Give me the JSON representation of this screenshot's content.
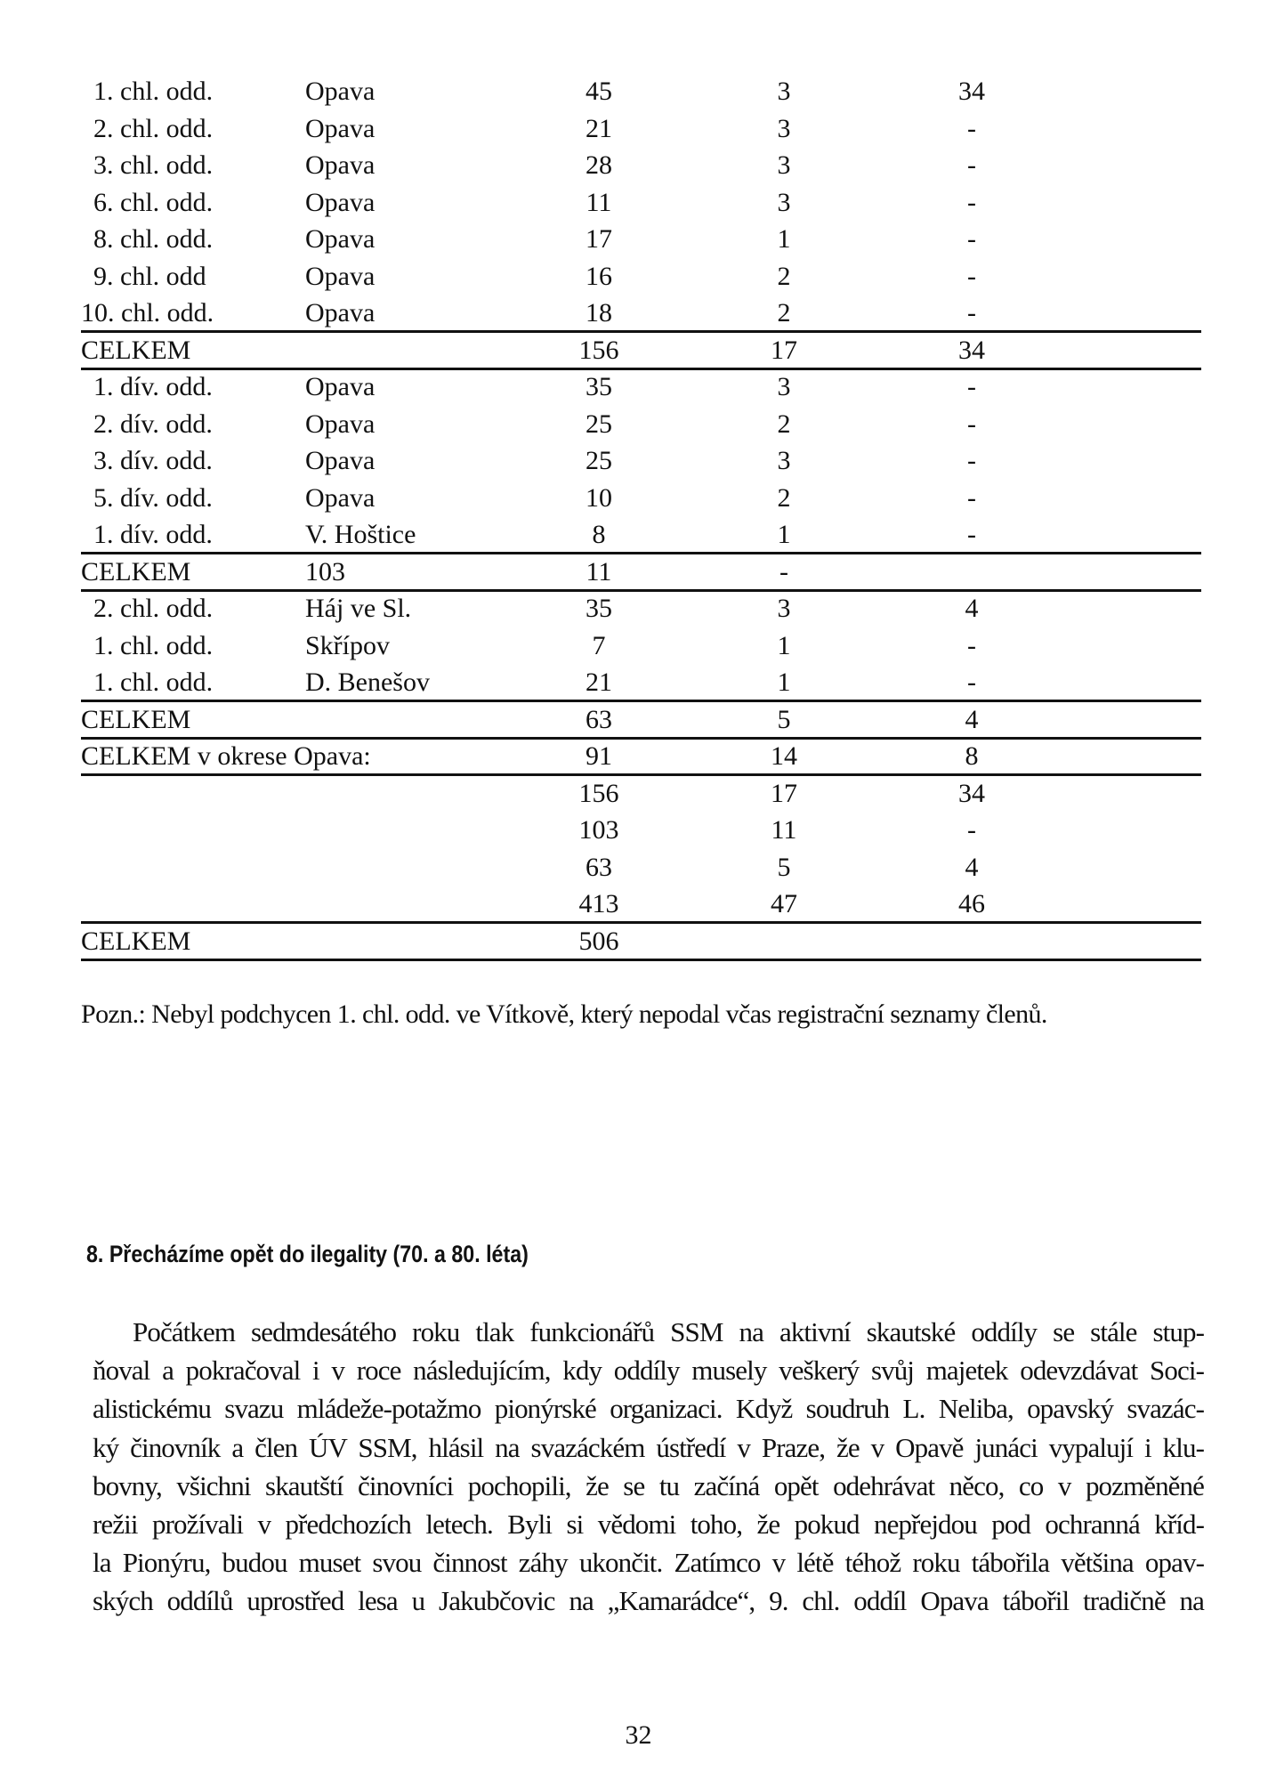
{
  "table": {
    "rows": [
      {
        "kind": "item",
        "cells": [
          "1. chl. odd.",
          "Opava",
          "45",
          "3",
          "34"
        ]
      },
      {
        "kind": "item",
        "cells": [
          "2. chl. odd.",
          "Opava",
          "21",
          "3",
          "-"
        ]
      },
      {
        "kind": "item",
        "cells": [
          "3. chl. odd.",
          "Opava",
          "28",
          "3",
          "-"
        ]
      },
      {
        "kind": "item",
        "cells": [
          "6. chl. odd.",
          "Opava",
          "11",
          "3",
          "-"
        ]
      },
      {
        "kind": "item",
        "cells": [
          "8. chl. odd.",
          "Opava",
          "17",
          "1",
          "-"
        ]
      },
      {
        "kind": "item",
        "cells": [
          "9. chl. odd",
          "Opava",
          "16",
          "2",
          "-"
        ]
      },
      {
        "kind": "item",
        "cells": [
          "10. chl. odd.",
          "Opava",
          "18",
          "2",
          "-"
        ]
      },
      {
        "kind": "total",
        "cells": [
          "CELKEM",
          "",
          "156",
          "17",
          "34"
        ]
      },
      {
        "kind": "item",
        "cells": [
          "1. dív. odd.",
          "Opava",
          "35",
          "3",
          "-"
        ]
      },
      {
        "kind": "item",
        "cells": [
          "2. dív. odd.",
          "Opava",
          "25",
          "2",
          "-"
        ]
      },
      {
        "kind": "item",
        "cells": [
          "3. dív. odd.",
          "Opava",
          "25",
          "3",
          "-"
        ]
      },
      {
        "kind": "item",
        "cells": [
          "5. dív. odd.",
          "Opava",
          "10",
          "2",
          "-"
        ]
      },
      {
        "kind": "item",
        "cells": [
          "1. dív. odd.",
          "V. Hoštice",
          "8",
          "1",
          "-"
        ]
      },
      {
        "kind": "total",
        "cells": [
          "CELKEM",
          "103",
          "11",
          "-",
          ""
        ]
      },
      {
        "kind": "item",
        "cells": [
          "2. chl. odd.",
          "Háj ve Sl.",
          "35",
          "3",
          "4"
        ]
      },
      {
        "kind": "item",
        "cells": [
          "1. chl. odd.",
          "Skřípov",
          "7",
          "1",
          "-"
        ]
      },
      {
        "kind": "item",
        "cells": [
          "1. chl. odd.",
          "D. Benešov",
          "21",
          "1",
          "-"
        ]
      },
      {
        "kind": "total",
        "cells": [
          "CELKEM",
          "",
          "63",
          "5",
          "4"
        ]
      },
      {
        "kind": "total",
        "cells": [
          "CELKEM v okrese Opava:",
          "",
          "91",
          "14",
          "8"
        ]
      },
      {
        "kind": "sum",
        "cells": [
          "",
          "",
          "156",
          "17",
          "34"
        ]
      },
      {
        "kind": "sum",
        "cells": [
          "",
          "",
          "103",
          "11",
          "-"
        ]
      },
      {
        "kind": "sum",
        "cells": [
          "",
          "",
          "63",
          "5",
          "4"
        ]
      },
      {
        "kind": "sum",
        "cells": [
          "",
          "",
          "413",
          "47",
          "46"
        ]
      },
      {
        "kind": "total",
        "cells": [
          "CELKEM",
          "",
          "506",
          "",
          ""
        ]
      }
    ]
  },
  "note": "Pozn.: Nebyl podchycen 1. chl. odd. ve Vítkově, který nepodal včas registrační seznamy členů.",
  "section_heading": "8. Přecházíme opět do ilegality (70. a 80. léta)",
  "paragraph_lines": [
    "Počátkem sedmdesátého roku tlak funkcionářů SSM na aktivní skautské oddíly se stále stup-",
    "ňoval a pokračoval i v roce následujícím, kdy oddíly musely veškerý svůj majetek odevzdávat Soci-",
    "alistickému svazu mládeže-potažmo pionýrské organizaci. Když soudruh L. Neliba, opavský svazác-",
    "ký činovník a člen ÚV SSM, hlásil na svazáckém ústředí v Praze, že v Opavě junáci vypalují i klu-",
    "bovny, všichni skautští činovníci pochopili, že se tu začíná opět odehrávat něco, co v pozměněné",
    "režii prožívali v předchozích letech. Byli si vědomi toho, že pokud nepřejdou pod ochranná kříd-",
    "la Pionýru, budou muset svou činnost záhy ukončit. Zatímco v létě téhož roku tábořila většina opav-",
    "ských oddílů uprostřed lesa u Jakubčovic na „Kamarádce“, 9. chl. oddíl Opava tábořil tradičně na"
  ],
  "page_number": "32"
}
